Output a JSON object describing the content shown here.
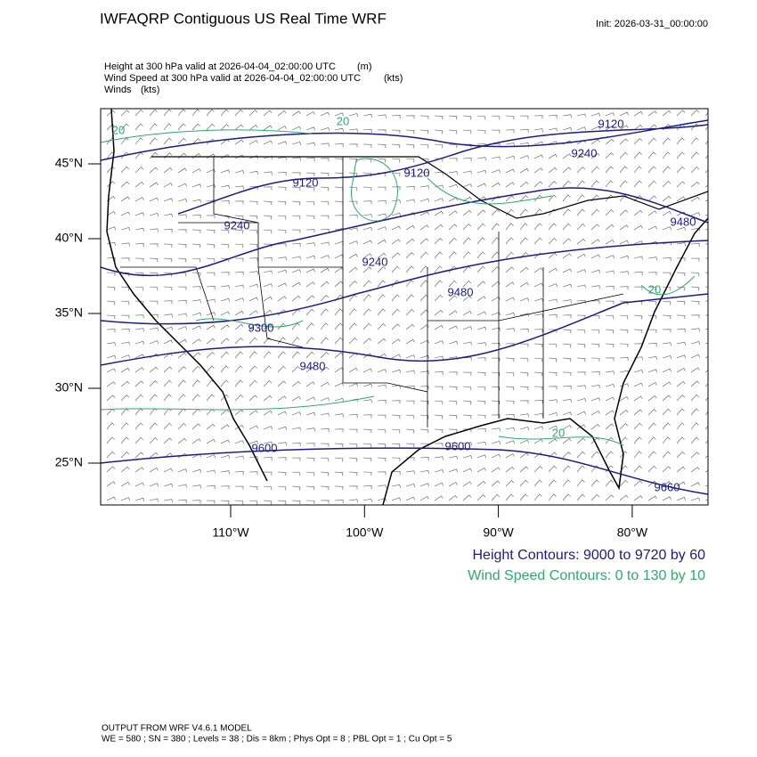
{
  "header": {
    "title": "IWFAQRP Contiguous US Real Time WRF",
    "init": "Init: 2026-03-31_00:00:00",
    "fields": [
      {
        "text": "Height at 300 hPa valid at 2026-04-04_02:00:00 UTC",
        "units": "(m)"
      },
      {
        "text": "Wind Speed at 300 hPa valid at 2026-04-04_02:00:00 UTC",
        "units": "(kts)"
      },
      {
        "text": "Winds",
        "units": "(kts)"
      }
    ]
  },
  "map": {
    "lat_labels": [
      {
        "value": 45,
        "label": "45°N"
      },
      {
        "value": 40,
        "label": "40°N"
      },
      {
        "value": 35,
        "label": "35°N"
      },
      {
        "value": 30,
        "label": "30°N"
      },
      {
        "value": 25,
        "label": "25°N"
      }
    ],
    "lon_labels": [
      {
        "value": -110,
        "label": "110°W"
      },
      {
        "value": -100,
        "label": "100°W"
      },
      {
        "value": -90,
        "label": "90°W"
      },
      {
        "value": -80,
        "label": "80°W"
      }
    ],
    "height_contour_labels": [
      "9120",
      "9240",
      "9120",
      "9120",
      "9240",
      "9480",
      "9240",
      "9480",
      "9300",
      "9480",
      "9600",
      "9600",
      "9660"
    ],
    "speed_contour_labels": [
      "20",
      "20",
      "20",
      "20"
    ]
  },
  "legend": {
    "height": "Height Contours: 9000 to 9720 by 60",
    "speed": "Wind Speed Contours: 0 to 130 by 10"
  },
  "footer": {
    "model": "OUTPUT FROM WRF V4.6.1 MODEL",
    "settings": "WE = 580 ; SN = 380 ; Levels = 38 ; Dis = 8km ; Phys Opt = 8 ; PBL Opt = 1 ; Cu Opt = 5"
  }
}
